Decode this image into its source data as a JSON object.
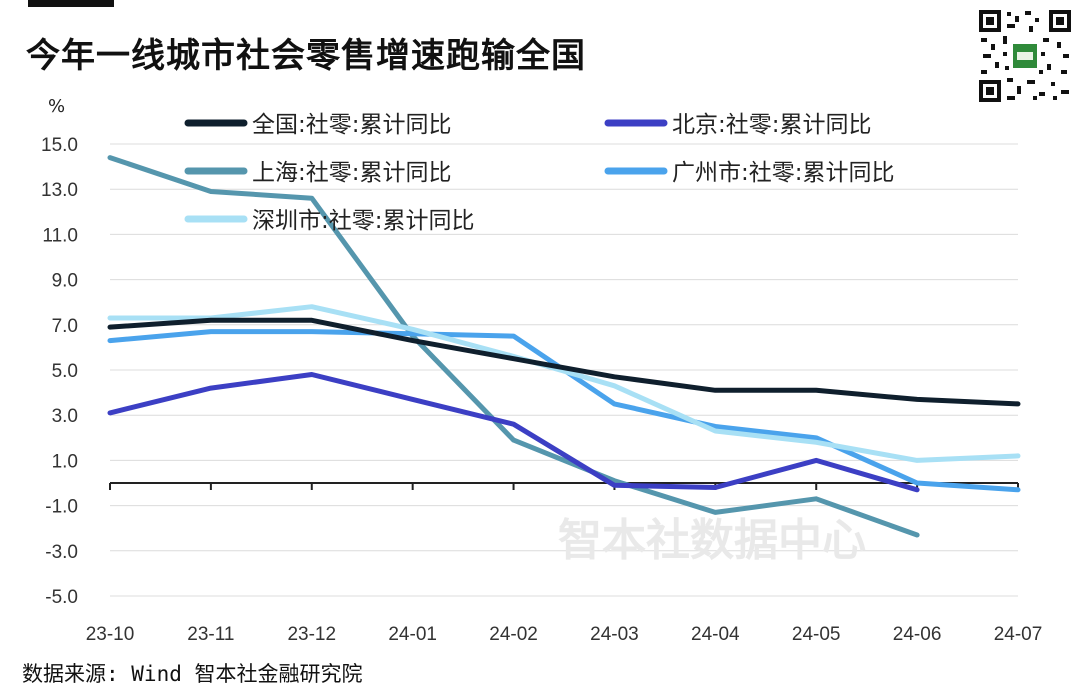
{
  "title": "今年一线城市社会零售增速跑输全国",
  "source": "数据来源: Wind 智本社金融研究院",
  "watermark": "智本社数据中心",
  "qr_icon": "qr-code-icon",
  "chart_data": {
    "type": "line",
    "ylabel": "%",
    "ylim": [
      -5,
      15
    ],
    "yticks": [
      "15.0",
      "13.0",
      "11.0",
      "9.0",
      "7.0",
      "5.0",
      "3.0",
      "1.0",
      "-1.0",
      "-3.0",
      "-5.0"
    ],
    "ytick_values": [
      15,
      13,
      11,
      9,
      7,
      5,
      3,
      1,
      -1,
      -3,
      -5
    ],
    "categories": [
      "23-10",
      "23-11",
      "23-12",
      "24-01",
      "24-02",
      "24-03",
      "24-04",
      "24-05",
      "24-06",
      "24-07"
    ],
    "grid": true,
    "legend_position": "top",
    "series": [
      {
        "name": "全国:社零:累计同比",
        "color": "#0f1f2d",
        "values": [
          6.9,
          7.2,
          7.2,
          6.3,
          5.5,
          4.7,
          4.1,
          4.1,
          3.7,
          3.5
        ]
      },
      {
        "name": "北京:社零:累计同比",
        "color": "#3c3fc4",
        "values": [
          3.1,
          4.2,
          4.8,
          3.7,
          2.6,
          -0.1,
          -0.2,
          1.0,
          -0.3,
          null
        ]
      },
      {
        "name": "上海:社零:累计同比",
        "color": "#5596ad",
        "values": [
          14.4,
          12.9,
          12.6,
          6.5,
          1.9,
          0.1,
          -1.3,
          -0.7,
          -2.3,
          null
        ]
      },
      {
        "name": "广州市:社零:累计同比",
        "color": "#4aa3ec",
        "values": [
          6.3,
          6.7,
          6.7,
          6.6,
          6.5,
          3.5,
          2.5,
          2.0,
          0.0,
          -0.3
        ]
      },
      {
        "name": "深圳市:社零:累计同比",
        "color": "#a8e0f5",
        "values": [
          7.3,
          7.3,
          7.8,
          6.8,
          5.6,
          4.3,
          2.3,
          1.8,
          1.0,
          1.2
        ]
      }
    ]
  }
}
